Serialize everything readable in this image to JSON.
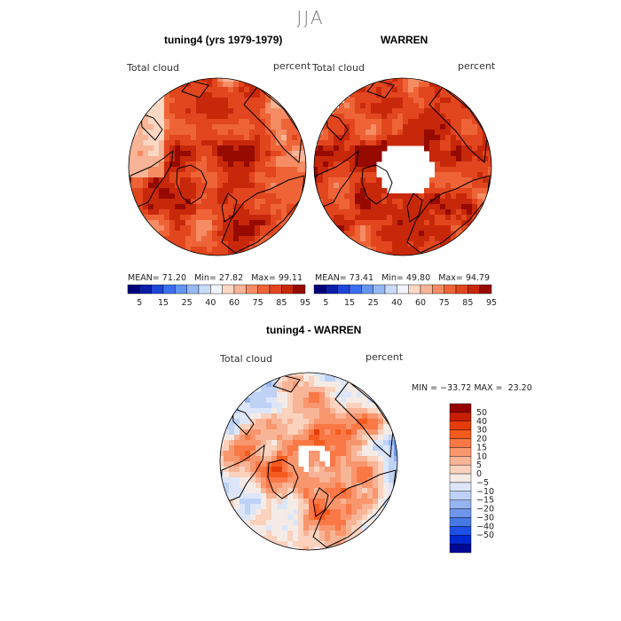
{
  "main_title": "JJA",
  "panels": [
    {
      "title": "tuning4 (yrs 1979-1979)",
      "variable": "Total cloud",
      "units": "percent",
      "stats": {
        "mean_label": "MEAN=",
        "mean": "71.20",
        "min_label": "Min=",
        "min": "27.82",
        "max_label": "Max=",
        "max": "99.11"
      }
    },
    {
      "title": "WARREN",
      "variable": "Total cloud",
      "units": "percent",
      "stats": {
        "mean_label": "MEAN=",
        "mean": "73.41",
        "min_label": "Min=",
        "min": "49.80",
        "max_label": "Max=",
        "max": "94.79"
      }
    },
    {
      "title": "tuning4 - WARREN",
      "variable": "Total cloud",
      "units": "percent",
      "stats": {
        "min_label": "MIN =",
        "min": "−33.72",
        "max_label": "MAX =",
        "max": "23.20"
      }
    }
  ],
  "chart_data": [
    {
      "type": "heatmap",
      "projection": "north-polar-stereographic",
      "title": "tuning4 (yrs 1979-1979)",
      "subtitle": "Total cloud (percent)",
      "stats": {
        "mean": 71.2,
        "min": 27.82,
        "max": 99.11
      },
      "colorbar": {
        "orientation": "horizontal",
        "tick_labels": [
          "5",
          "15",
          "25",
          "40",
          "60",
          "75",
          "85",
          "95"
        ],
        "colors": [
          "#00007a",
          "#0a1ea8",
          "#1e46d8",
          "#3c6ef0",
          "#6495f0",
          "#96b9f5",
          "#c8dcfa",
          "#f0f3fa",
          "#fcd7c3",
          "#f8b496",
          "#f58c64",
          "#ee6437",
          "#e1461e",
          "#c8280a",
          "#960a00"
        ]
      }
    },
    {
      "type": "heatmap",
      "projection": "north-polar-stereographic",
      "title": "WARREN",
      "subtitle": "Total cloud (percent)",
      "stats": {
        "mean": 73.41,
        "min": 49.8,
        "max": 94.79
      },
      "colorbar": {
        "orientation": "horizontal",
        "tick_labels": [
          "5",
          "15",
          "25",
          "40",
          "60",
          "75",
          "85",
          "95"
        ],
        "colors": [
          "#00007a",
          "#0a1ea8",
          "#1e46d8",
          "#3c6ef0",
          "#6495f0",
          "#96b9f5",
          "#c8dcfa",
          "#f0f3fa",
          "#fcd7c3",
          "#f8b496",
          "#f58c64",
          "#ee6437",
          "#e1461e",
          "#c8280a",
          "#960a00"
        ]
      }
    },
    {
      "type": "heatmap",
      "projection": "north-polar-stereographic",
      "title": "tuning4 - WARREN",
      "subtitle": "Total cloud (percent)",
      "stats": {
        "min": -33.72,
        "max": 23.2
      },
      "colorbar": {
        "orientation": "vertical",
        "tick_labels": [
          "50",
          "40",
          "30",
          "20",
          "15",
          "10",
          "5",
          "0",
          "−5",
          "−10",
          "−15",
          "−20",
          "−30",
          "−40",
          "−50"
        ],
        "colors": [
          "#960000",
          "#c81e00",
          "#e63c0a",
          "#f55a1e",
          "#fa7846",
          "#f8966e",
          "#f8b496",
          "#fad2be",
          "#f5ebe6",
          "#dce6f8",
          "#bed2f5",
          "#96b4f0",
          "#6e96eb",
          "#4678e6",
          "#1e50e6",
          "#0028d2",
          "#000a96"
        ]
      }
    }
  ],
  "colors": {
    "land_outline": "#000000",
    "missing": "#ffffff"
  }
}
